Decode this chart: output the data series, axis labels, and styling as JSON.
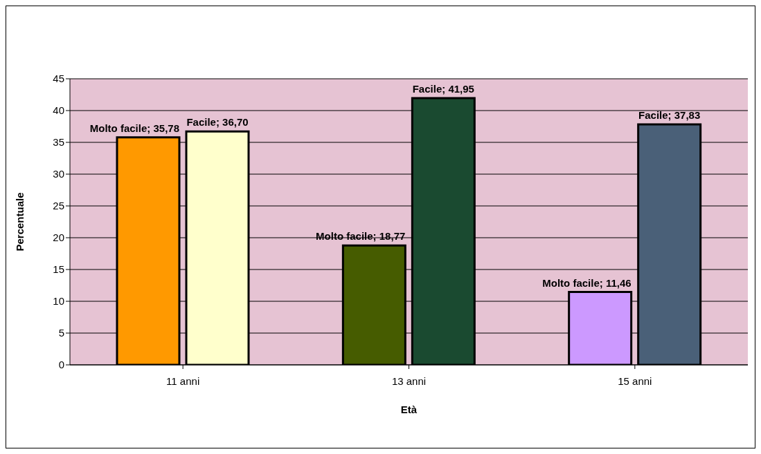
{
  "chart_data": {
    "type": "bar",
    "xlabel": "Età",
    "ylabel": "Percentuale",
    "categories": [
      "11 anni",
      "13 anni",
      "15 anni"
    ],
    "series": [
      {
        "colors": [
          "#ff9900",
          "#465c00",
          "#cc99ff"
        ],
        "values": [
          35.78,
          18.77,
          11.46
        ],
        "value_labels": [
          "Molto facile; 35,78",
          "Molto facile; 18,77",
          "Molto facile; 11,46"
        ]
      },
      {
        "colors": [
          "#ffffcc",
          "#1a4a30",
          "#4a6078"
        ],
        "values": [
          36.7,
          41.95,
          37.83
        ],
        "value_labels": [
          "Facile; 36,70",
          "Facile; 41,95",
          "Facile; 37,83"
        ]
      }
    ],
    "ylim": [
      0,
      45
    ],
    "yticks": [
      0,
      5,
      10,
      15,
      20,
      25,
      30,
      35,
      40,
      45
    ],
    "grid": "y"
  }
}
